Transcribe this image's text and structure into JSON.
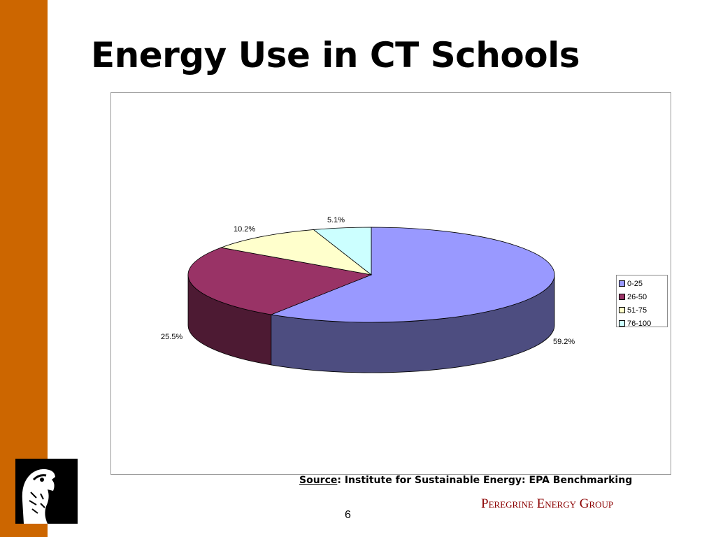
{
  "slide": {
    "title": "Energy Use in CT Schools",
    "page_number": "6",
    "source_label": "Source",
    "source_text": ":  Institute for Sustainable Energy: EPA Benchmarking",
    "company": "Peregrine Energy Group"
  },
  "colors": {
    "accent_bar": "#cc6600",
    "company_text": "#8b0000"
  },
  "chart_data": {
    "type": "pie",
    "style": "3d",
    "categories": [
      "0-25",
      "26-50",
      "51-75",
      "76-100"
    ],
    "values": [
      59.2,
      25.5,
      10.2,
      5.1
    ],
    "data_labels": [
      "59.2%",
      "25.5%",
      "10.2%",
      "5.1%"
    ],
    "colors": [
      "#9999ff",
      "#993366",
      "#ffffcc",
      "#ccffff"
    ],
    "side_colors": [
      "#4d4d80",
      "#4d1a33",
      "#808066",
      "#668080"
    ],
    "legend_position": "right"
  }
}
